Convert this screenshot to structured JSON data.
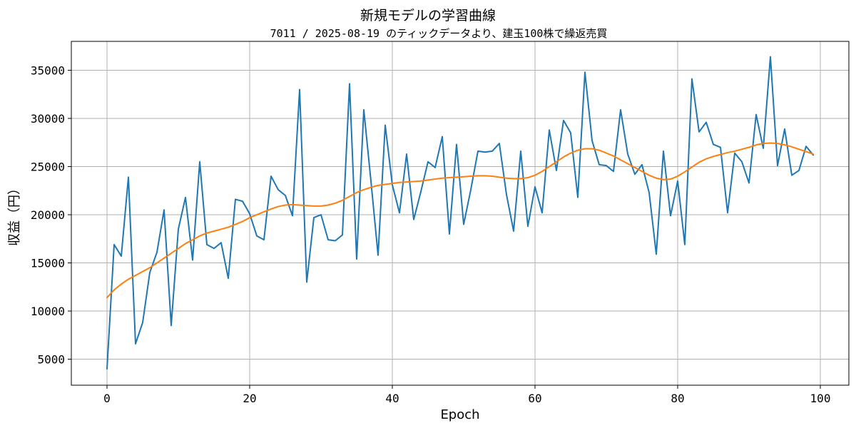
{
  "chart_data": {
    "type": "line",
    "title": "新規モデルの学習曲線",
    "subtitle": "7011 / 2025-08-19 のティックデータより、建玉100株で繰返売買",
    "xlabel": "Epoch",
    "ylabel": "収益（円）",
    "xlim": [
      -5,
      104
    ],
    "ylim": [
      2300,
      38000
    ],
    "xticks": [
      0,
      20,
      40,
      60,
      80,
      100
    ],
    "yticks": [
      5000,
      10000,
      15000,
      20000,
      25000,
      30000,
      35000
    ],
    "grid": true,
    "series": [
      {
        "color": "#1f77b4",
        "values": [
          4000,
          16900,
          15700,
          23900,
          6600,
          8800,
          14000,
          16100,
          20500,
          8500,
          18500,
          21800,
          15300,
          25500,
          16900,
          16500,
          17100,
          13400,
          21600,
          21400,
          20100,
          17800,
          17400,
          24000,
          22600,
          22000,
          19900,
          33000,
          13000,
          19700,
          20000,
          17400,
          17300,
          17900,
          33600,
          15400,
          30900,
          23500,
          15800,
          29300,
          23100,
          20200,
          26300,
          19500,
          22400,
          25500,
          24900,
          28100,
          18000,
          27300,
          19000,
          22600,
          26600,
          26500,
          26600,
          27400,
          22100,
          18300,
          26600,
          18800,
          22900,
          20200,
          28800,
          24600,
          29800,
          28500,
          21800,
          34800,
          27700,
          25200,
          25100,
          24500,
          30900,
          26300,
          24200,
          25200,
          22300,
          15900,
          26600,
          19900,
          23500,
          16900,
          34100,
          28600,
          29600,
          27300,
          27000,
          20200,
          26400,
          25500,
          23300,
          30400,
          26900,
          36400,
          25100,
          28900,
          24100,
          24600,
          27100,
          26200
        ]
      },
      {
        "color": "#ff7f0e",
        "values": [
          11400,
          12200,
          12800,
          13300,
          13700,
          14100,
          14500,
          15000,
          15500,
          16000,
          16500,
          17000,
          17400,
          17800,
          18100,
          18300,
          18500,
          18700,
          19000,
          19300,
          19700,
          20000,
          20300,
          20600,
          20850,
          21000,
          21050,
          21000,
          20950,
          20900,
          20900,
          21000,
          21200,
          21500,
          21900,
          22300,
          22600,
          22850,
          23050,
          23150,
          23250,
          23350,
          23400,
          23450,
          23500,
          23600,
          23700,
          23800,
          23850,
          23900,
          23950,
          24000,
          24050,
          24050,
          24000,
          23900,
          23800,
          23750,
          23750,
          23850,
          24100,
          24500,
          25000,
          25500,
          26000,
          26400,
          26700,
          26850,
          26850,
          26700,
          26400,
          26100,
          25700,
          25300,
          24900,
          24500,
          24100,
          23800,
          23650,
          23700,
          24000,
          24450,
          24950,
          25450,
          25800,
          26050,
          26250,
          26450,
          26600,
          26800,
          27000,
          27250,
          27400,
          27450,
          27400,
          27250,
          27050,
          26800,
          26550,
          26300
        ]
      }
    ]
  }
}
